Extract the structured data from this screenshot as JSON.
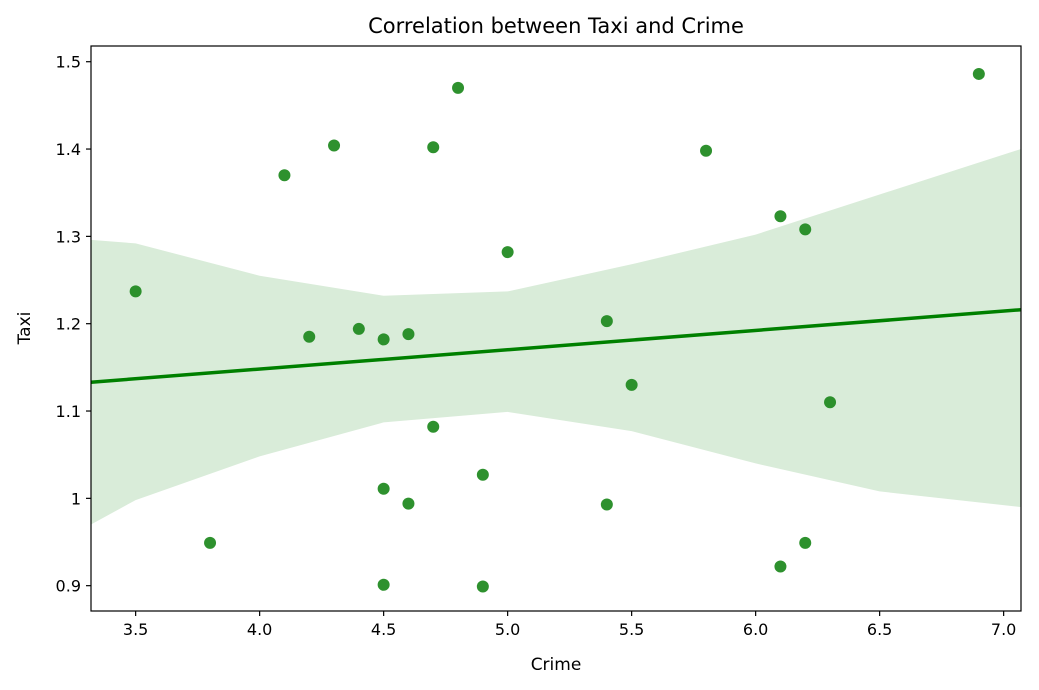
{
  "chart_data": {
    "type": "scatter",
    "title": "Correlation between Taxi and Crime",
    "xlabel": "Crime",
    "ylabel": "Taxi",
    "xlim": [
      3.32,
      7.07
    ],
    "ylim": [
      0.871,
      1.518
    ],
    "x_ticks": [
      3.5,
      4.0,
      4.5,
      5.0,
      5.5,
      6.0,
      6.5,
      7.0
    ],
    "x_tick_labels": [
      "3.5",
      "4.0",
      "4.5",
      "5.0",
      "5.5",
      "6.0",
      "6.5",
      "7.0"
    ],
    "y_ticks": [
      0.9,
      1.0,
      1.1,
      1.2,
      1.3,
      1.4,
      1.5
    ],
    "y_tick_labels": [
      "0.9",
      "1",
      "1.1",
      "1.2",
      "1.3",
      "1.4",
      "1.5"
    ],
    "grid": false,
    "legend": "none",
    "colors": {
      "points": "#238b23",
      "line": "#008000",
      "band": "#d9ecd9"
    },
    "points": [
      {
        "x": 3.5,
        "y": 1.237
      },
      {
        "x": 3.8,
        "y": 0.949
      },
      {
        "x": 4.1,
        "y": 1.37
      },
      {
        "x": 4.2,
        "y": 1.185
      },
      {
        "x": 4.3,
        "y": 1.404
      },
      {
        "x": 4.4,
        "y": 1.194
      },
      {
        "x": 4.5,
        "y": 1.182
      },
      {
        "x": 4.5,
        "y": 1.011
      },
      {
        "x": 4.5,
        "y": 0.901
      },
      {
        "x": 4.6,
        "y": 1.188
      },
      {
        "x": 4.6,
        "y": 0.994
      },
      {
        "x": 4.7,
        "y": 1.402
      },
      {
        "x": 4.7,
        "y": 1.082
      },
      {
        "x": 4.8,
        "y": 1.47
      },
      {
        "x": 4.9,
        "y": 1.027
      },
      {
        "x": 4.9,
        "y": 0.899
      },
      {
        "x": 5.0,
        "y": 1.282
      },
      {
        "x": 5.4,
        "y": 1.203
      },
      {
        "x": 5.4,
        "y": 0.993
      },
      {
        "x": 5.5,
        "y": 1.13
      },
      {
        "x": 5.8,
        "y": 1.398
      },
      {
        "x": 6.1,
        "y": 1.323
      },
      {
        "x": 6.1,
        "y": 0.922
      },
      {
        "x": 6.2,
        "y": 1.308
      },
      {
        "x": 6.2,
        "y": 0.949
      },
      {
        "x": 6.3,
        "y": 1.11
      },
      {
        "x": 6.9,
        "y": 1.486
      }
    ],
    "regression": {
      "x": [
        3.32,
        7.07
      ],
      "y": [
        1.133,
        1.216
      ]
    },
    "confidence_band": {
      "x": [
        3.32,
        3.5,
        4.0,
        4.5,
        5.0,
        5.5,
        6.0,
        6.5,
        7.07
      ],
      "upper": [
        1.296,
        1.292,
        1.255,
        1.232,
        1.237,
        1.268,
        1.302,
        1.348,
        1.4
      ],
      "lower": [
        0.97,
        0.998,
        1.048,
        1.087,
        1.099,
        1.077,
        1.04,
        1.008,
        0.99
      ]
    }
  }
}
